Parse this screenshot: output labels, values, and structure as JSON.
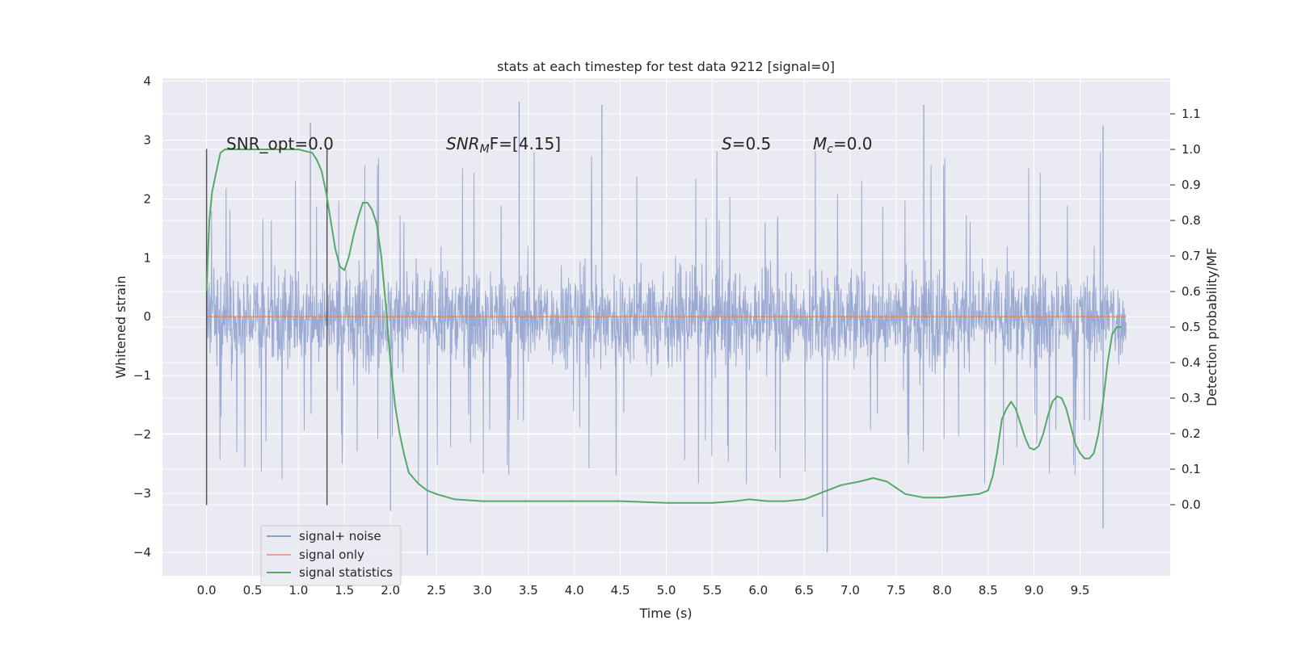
{
  "chart_data": {
    "type": "line",
    "title": "stats at each timestep for test data 9212 [signal=0]",
    "xlabel": "Time (s)",
    "ylabel": "Whitened strain",
    "y2label": "Detection probability/MF",
    "xlim": [
      -0.48,
      10.48
    ],
    "ylim": [
      -4.4,
      4.05
    ],
    "y2lim": [
      -0.2,
      1.2
    ],
    "xticks": [
      "0.0",
      "0.5",
      "1.0",
      "1.5",
      "2.0",
      "2.5",
      "3.0",
      "3.5",
      "4.0",
      "4.5",
      "5.0",
      "5.5",
      "6.0",
      "6.5",
      "7.0",
      "7.5",
      "8.0",
      "8.5",
      "9.0",
      "9.5"
    ],
    "yticks": [
      "4",
      "3",
      "2",
      "1",
      "0",
      "−1",
      "−2",
      "−3",
      "−4"
    ],
    "y2ticks": [
      "1.1",
      "1.0",
      "0.9",
      "0.8",
      "0.7",
      "0.6",
      "0.5",
      "0.4",
      "0.3",
      "0.2",
      "0.1",
      "0.0"
    ],
    "grid": true,
    "legend_position": "lower-left",
    "annotations": {
      "snr_opt": "SNR_opt=0.0",
      "snr_mf_main": "SNR",
      "snr_mf_sub": "M",
      "snr_mf_rest": "F=[4.15]",
      "s_main": "S",
      "s_rest": "=0.5",
      "mc_main": "M",
      "mc_sub": "c",
      "mc_rest": "=0.0"
    },
    "markers": {
      "vlines_x": [
        0.0,
        1.31
      ],
      "vlines_ymin": -3.2,
      "vlines_ymax": 2.85
    },
    "noise_envelope": {
      "x_range": [
        0.0,
        10.0
      ],
      "core_amplitude": 1.0,
      "typical_peak": 2.2,
      "max_peak": 3.65,
      "min_trough": -4.0,
      "notable_peaks": [
        {
          "x": 1.13,
          "y": 3.3
        },
        {
          "x": 3.4,
          "y": 3.65
        },
        {
          "x": 4.3,
          "y": 3.6
        },
        {
          "x": 7.8,
          "y": 3.6
        },
        {
          "x": 9.75,
          "y": 3.25
        },
        {
          "x": 2.0,
          "y": -3.3
        },
        {
          "x": 2.4,
          "y": -4.05
        },
        {
          "x": 6.7,
          "y": -3.4
        },
        {
          "x": 6.75,
          "y": -4.0
        },
        {
          "x": 9.75,
          "y": -3.6
        }
      ]
    },
    "series": [
      {
        "name": "signal+ noise",
        "color": "#8c9fcc",
        "kind": "noise"
      },
      {
        "name": "signal only",
        "color": "#dd8452",
        "x": [
          0.0,
          10.0
        ],
        "y": [
          0.0,
          0.0
        ]
      },
      {
        "name": "signal statistics",
        "color": "#55a868",
        "axis": "right",
        "x": [
          0.0,
          0.03,
          0.06,
          0.1,
          0.15,
          0.2,
          0.3,
          0.5,
          0.8,
          1.0,
          1.15,
          1.2,
          1.25,
          1.3,
          1.35,
          1.4,
          1.45,
          1.5,
          1.55,
          1.6,
          1.65,
          1.7,
          1.75,
          1.8,
          1.85,
          1.9,
          1.95,
          2.0,
          2.05,
          2.1,
          2.15,
          2.2,
          2.3,
          2.4,
          2.5,
          2.7,
          3.0,
          3.5,
          4.0,
          4.5,
          5.0,
          5.5,
          5.75,
          5.9,
          6.1,
          6.3,
          6.5,
          6.7,
          6.9,
          7.1,
          7.25,
          7.4,
          7.6,
          7.8,
          8.0,
          8.2,
          8.4,
          8.5,
          8.55,
          8.6,
          8.65,
          8.7,
          8.75,
          8.8,
          8.85,
          8.9,
          8.95,
          9.0,
          9.05,
          9.1,
          9.15,
          9.2,
          9.25,
          9.3,
          9.35,
          9.4,
          9.45,
          9.5,
          9.55,
          9.6,
          9.65,
          9.7,
          9.75,
          9.8,
          9.85,
          9.9,
          9.95
        ],
        "y": [
          0.6,
          0.8,
          0.88,
          0.93,
          0.99,
          1.0,
          1.0,
          1.0,
          1.0,
          1.0,
          0.99,
          0.97,
          0.94,
          0.88,
          0.8,
          0.72,
          0.67,
          0.66,
          0.7,
          0.76,
          0.81,
          0.85,
          0.85,
          0.83,
          0.79,
          0.7,
          0.56,
          0.4,
          0.28,
          0.2,
          0.14,
          0.09,
          0.06,
          0.04,
          0.03,
          0.015,
          0.01,
          0.01,
          0.01,
          0.01,
          0.005,
          0.005,
          0.01,
          0.015,
          0.01,
          0.01,
          0.015,
          0.035,
          0.055,
          0.065,
          0.075,
          0.065,
          0.03,
          0.02,
          0.02,
          0.025,
          0.03,
          0.04,
          0.08,
          0.15,
          0.24,
          0.27,
          0.29,
          0.27,
          0.23,
          0.19,
          0.16,
          0.155,
          0.165,
          0.2,
          0.25,
          0.29,
          0.305,
          0.3,
          0.27,
          0.22,
          0.17,
          0.145,
          0.13,
          0.13,
          0.145,
          0.2,
          0.29,
          0.4,
          0.48,
          0.5,
          0.5
        ]
      }
    ]
  }
}
